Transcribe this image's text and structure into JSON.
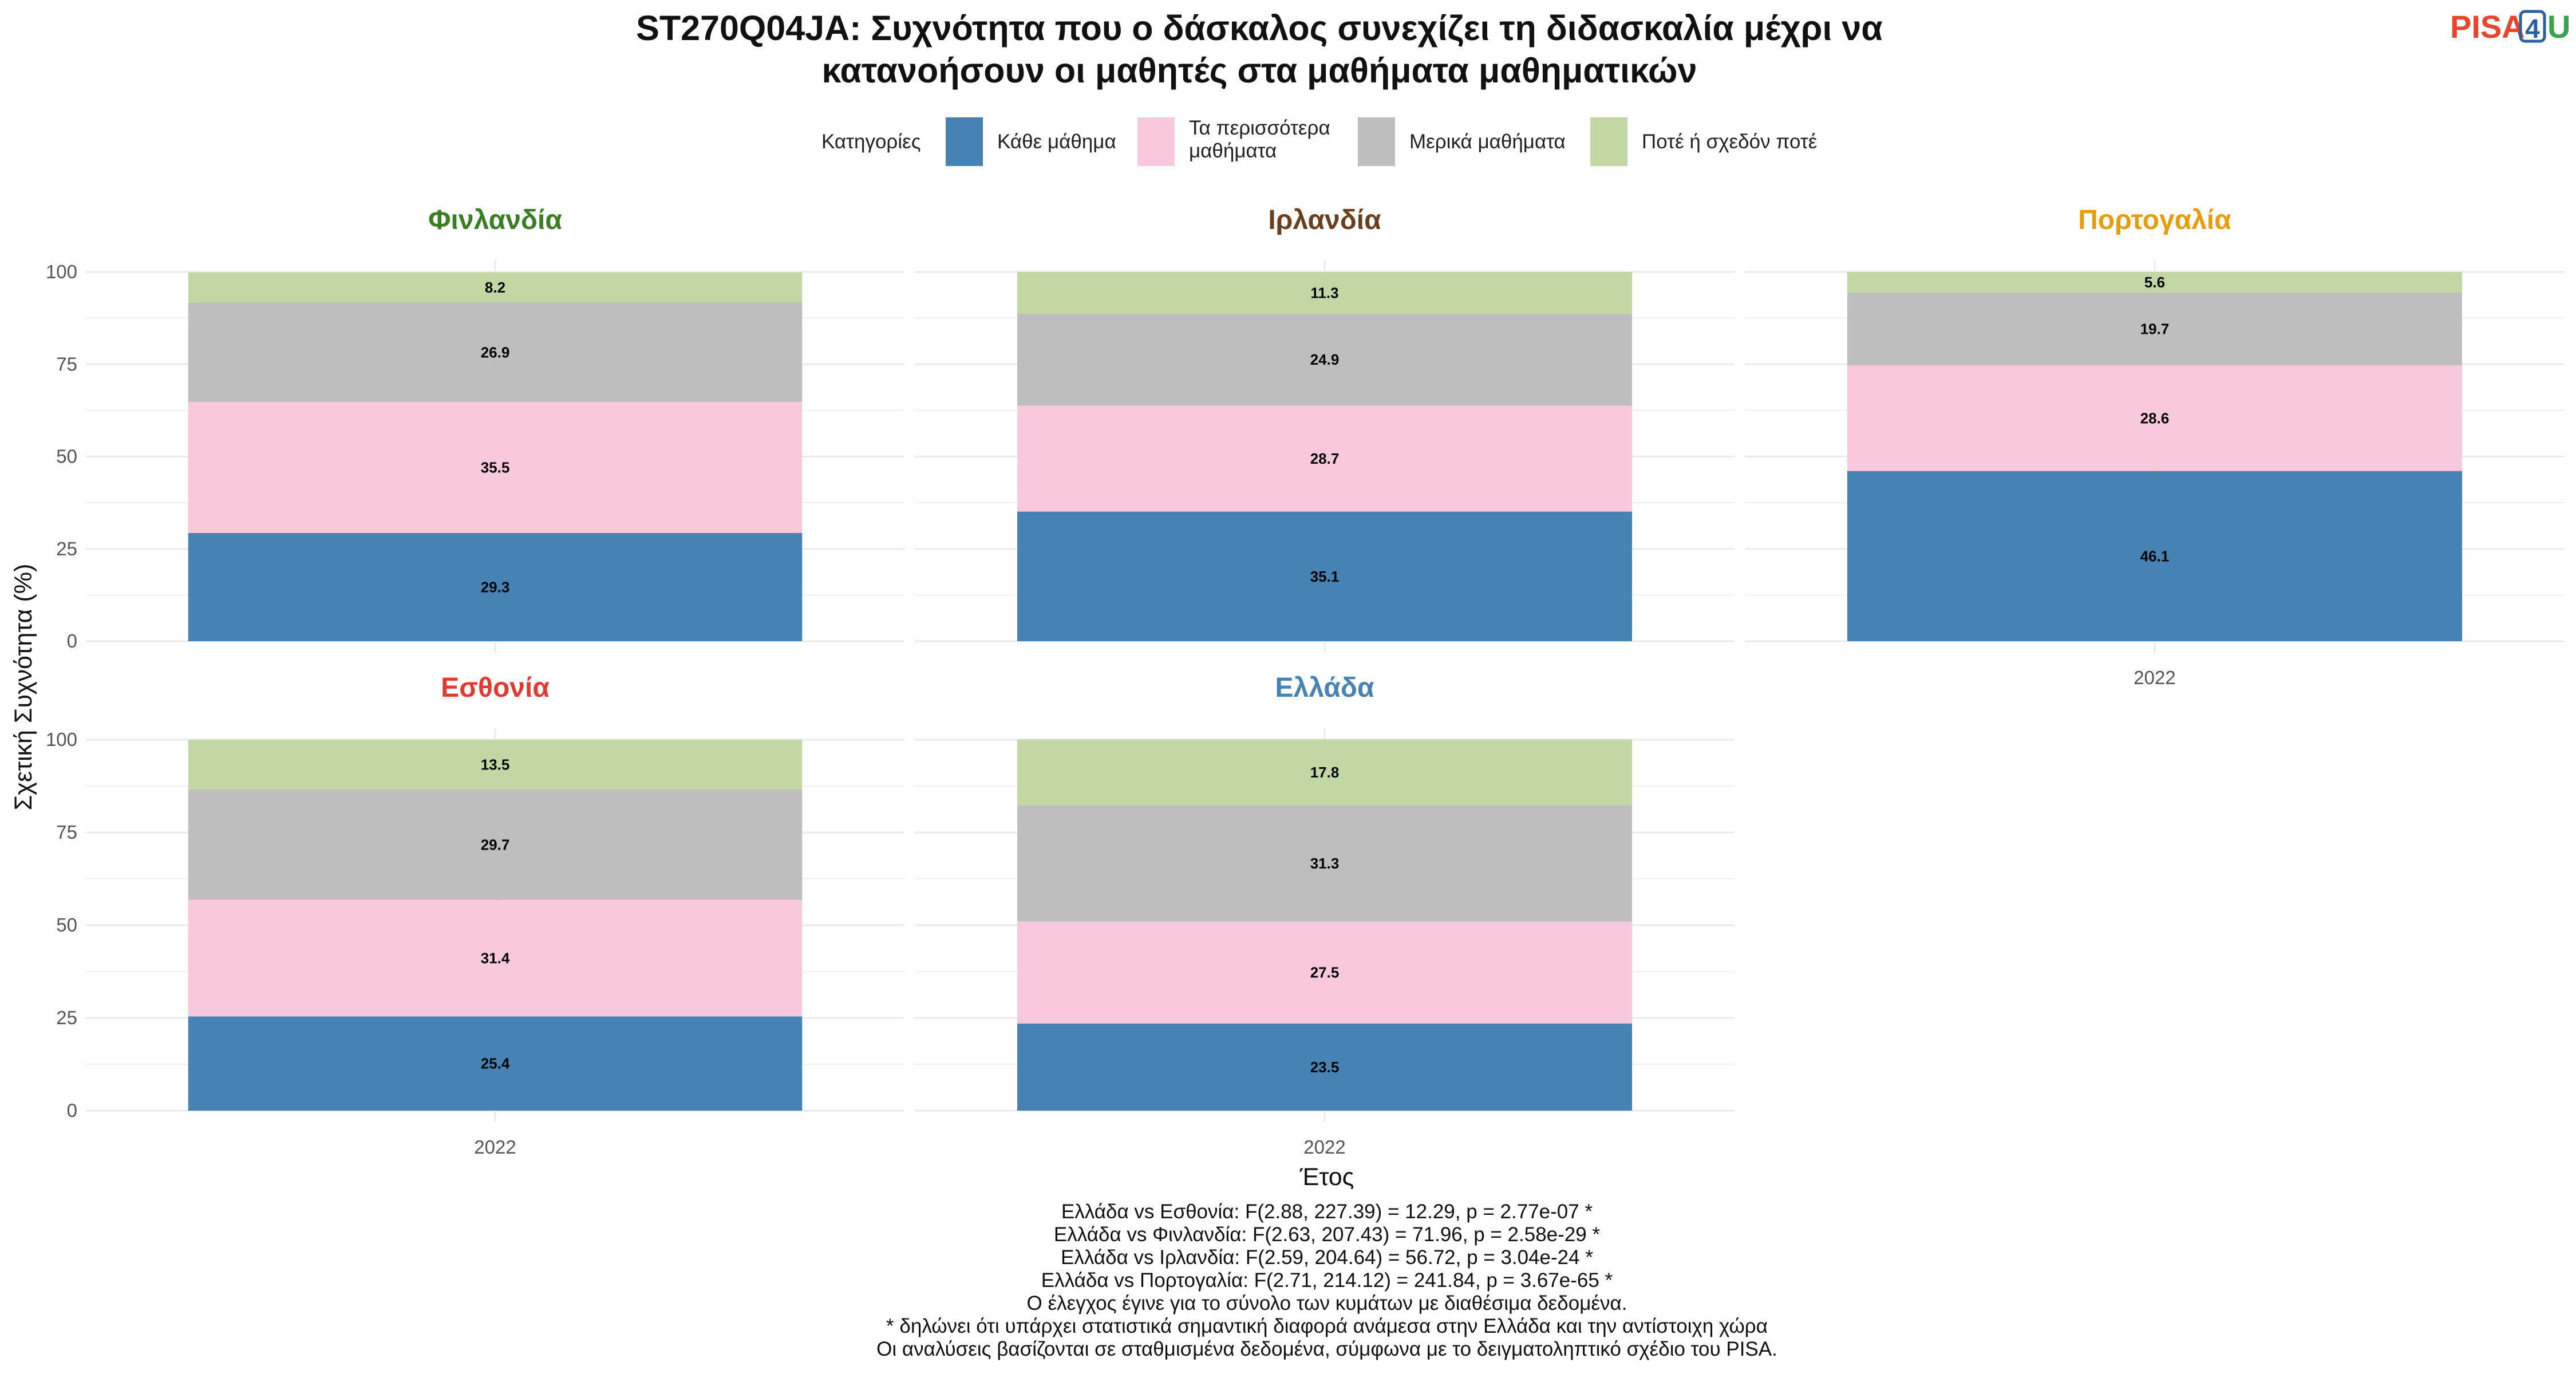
{
  "title_lines": [
    "ST270Q04JA: Συχνότητα που ο δάσκαλος συνεχίζει τη διδασκαλία μέχρι να",
    "κατανοήσουν οι μαθητές στα μαθήματα μαθηματικών"
  ],
  "logo": {
    "text_a": "PISA",
    "text_b": "4",
    "text_c": "U",
    "color_a": "#e8452c",
    "color_b": "#2b5fa4",
    "color_c": "#3aa34b"
  },
  "chart_data": {
    "type": "bar",
    "stacked": true,
    "x_label": "Έτος",
    "y_label": "Σχετική Συχνότητα (%)",
    "ylim": [
      0,
      100
    ],
    "y_ticks": [
      0,
      25,
      50,
      75,
      100
    ],
    "categories": [
      "2022"
    ],
    "legend": {
      "title": "Κατηγορίες",
      "position": "top",
      "items": [
        {
          "label_lines": [
            "Κάθε μάθημα"
          ],
          "color": "#4682b4"
        },
        {
          "label_lines": [
            "Τα περισσότερα",
            "μαθήματα"
          ],
          "color": "#f8c8dc"
        },
        {
          "label_lines": [
            "Μερικά μαθήματα"
          ],
          "color": "#bebebe"
        },
        {
          "label_lines": [
            "Ποτέ ή σχεδόν ποτέ"
          ],
          "color": "#c2d7a4"
        }
      ]
    },
    "panels": [
      {
        "name": "Φινλανδία",
        "color": "#3a7d22",
        "values": [
          29.3,
          35.5,
          26.9,
          8.2
        ]
      },
      {
        "name": "Ιρλανδία",
        "color": "#6b3f1c",
        "values": [
          35.1,
          28.7,
          24.9,
          11.3
        ]
      },
      {
        "name": "Πορτογαλία",
        "color": "#e89c0c",
        "values": [
          46.1,
          28.6,
          19.7,
          5.6
        ]
      },
      {
        "name": "Εσθονία",
        "color": "#e03a32",
        "values": [
          25.4,
          31.4,
          29.7,
          13.5
        ]
      },
      {
        "name": "Ελλάδα",
        "color": "#4682b4",
        "values": [
          23.5,
          27.5,
          31.3,
          17.8
        ]
      }
    ]
  },
  "notes": [
    "Ελλάδα vs Εσθονία: F(2.88, 227.39) = 12.29, p = 2.77e-07 *",
    "Ελλάδα vs Φινλανδία: F(2.63, 207.43) = 71.96, p = 2.58e-29 *",
    "Ελλάδα vs Ιρλανδία: F(2.59, 204.64) = 56.72, p = 3.04e-24 *",
    "Ελλάδα vs Πορτογαλία: F(2.71, 214.12) = 241.84, p = 3.67e-65 *",
    "Ο έλεγχος έγινε για το σύνολο των κυμάτων με διαθέσιμα δεδομένα.",
    "* δηλώνει ότι υπάρχει στατιστικά σημαντική διαφορά ανάμεσα στην Ελλάδα και την αντίστοιχη χώρα",
    "Οι αναλύσεις βασίζονται σε σταθμισμένα δεδομένα, σύμφωνα με το δειγματοληπτικό σχέδιο του PISA."
  ]
}
